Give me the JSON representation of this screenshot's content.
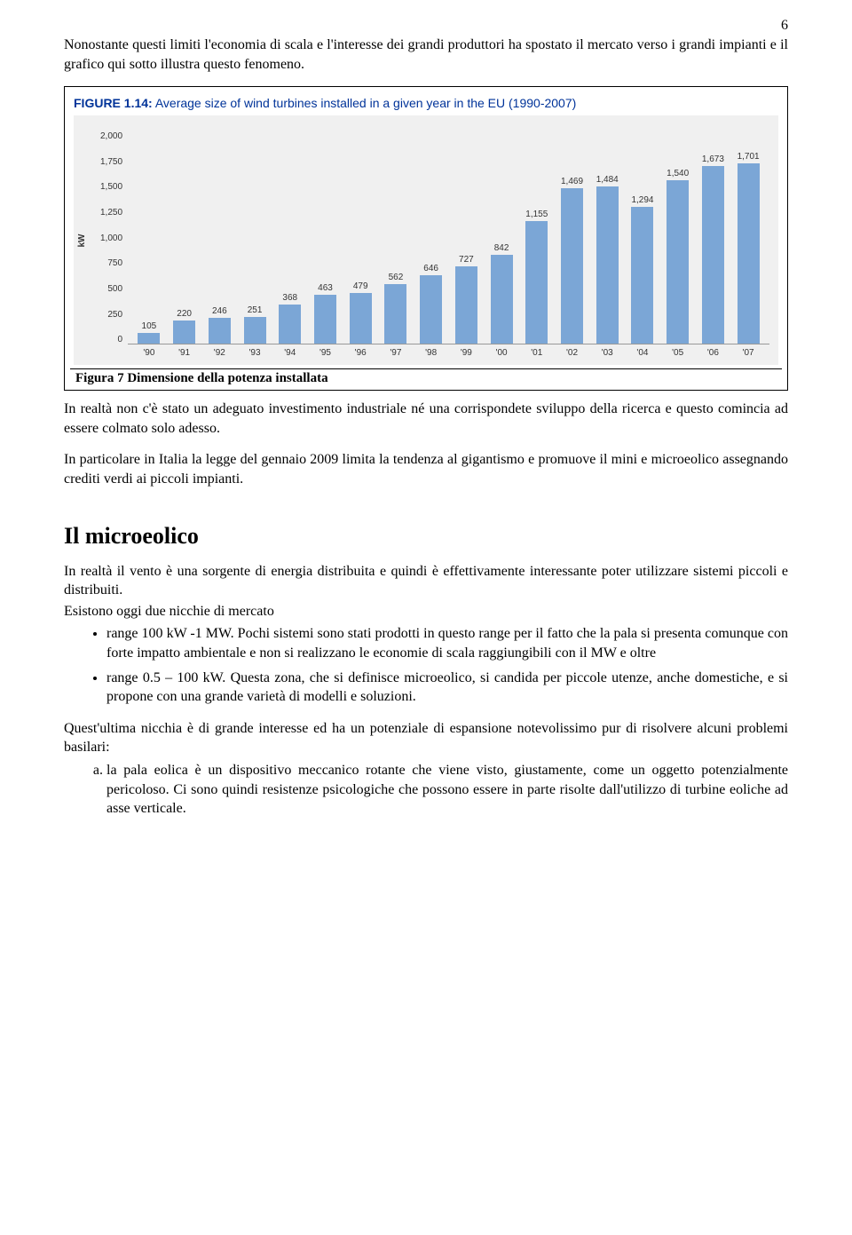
{
  "page_number": "6",
  "intro_para": "Nonostante questi limiti l'economia di scala e l'interesse dei grandi produttori ha spostato il mercato verso i grandi impianti e il grafico qui sotto illustra questo fenomeno.",
  "figure": {
    "label": "FIGURE 1.14:",
    "title": "Average size of wind turbines installed in a given year in the EU (1990-2007)",
    "caption": "Figura 7 Dimensione della potenza installata",
    "chart": {
      "type": "bar",
      "y_label": "kW",
      "y_ticks": [
        "2,000",
        "1,750",
        "1,500",
        "1,250",
        "1,000",
        "750",
        "500",
        "250",
        "0"
      ],
      "y_max": 2000,
      "bar_color": "#7ba6d6",
      "background_color": "#f0f0f0",
      "categories": [
        "'90",
        "'91",
        "'92",
        "'93",
        "'94",
        "'95",
        "'96",
        "'97",
        "'98",
        "'99",
        "'00",
        "'01",
        "'02",
        "'03",
        "'04",
        "'05",
        "'06",
        "'07"
      ],
      "values": [
        105,
        220,
        246,
        251,
        368,
        463,
        479,
        562,
        646,
        727,
        842,
        1155,
        1469,
        1484,
        1294,
        1540,
        1673,
        1701
      ],
      "value_labels": [
        "105",
        "220",
        "246",
        "251",
        "368",
        "463",
        "479",
        "562",
        "646",
        "727",
        "842",
        "1,155",
        "1,469",
        "1,484",
        "1,294",
        "1,540",
        "1,673",
        "1,701"
      ]
    }
  },
  "para_after_fig": "In realtà non c'è stato un adeguato investimento industriale né una corrispondete sviluppo della ricerca e questo comincia ad essere colmato solo adesso.",
  "para_after_fig2": "In particolare in Italia la legge del gennaio 2009 limita la tendenza al gigantismo e promuove il mini e microeolico assegnando crediti verdi ai piccoli impianti.",
  "section_title": "Il microeolico",
  "sec_para1": "In realtà il vento è una sorgente di energia distribuita e quindi è effettivamente interessante poter utilizzare sistemi piccoli e distribuiti.",
  "sec_para2": "Esistono oggi due nicchie di mercato",
  "bullets": [
    "range 100 kW -1 MW. Pochi sistemi sono stati prodotti in questo range per il fatto che la pala si presenta comunque con forte impatto ambientale e non si realizzano le economie di scala raggiungibili con il MW e oltre",
    "range 0.5 – 100 kW. Questa zona, che si definisce microeolico, si candida per piccole utenze, anche domestiche, e si propone con una grande varietà di modelli e soluzioni."
  ],
  "sec_para3": "Quest'ultima nicchia è di grande interesse ed ha un potenziale di espansione notevolissimo pur di risolvere alcuni problemi basilari:",
  "ordered": [
    "la pala eolica è un dispositivo meccanico rotante che viene visto, giustamente, come un oggetto potenzialmente pericoloso. Ci sono quindi resistenze psicologiche che possono essere in parte risolte dall'utilizzo di turbine eoliche ad asse verticale."
  ]
}
